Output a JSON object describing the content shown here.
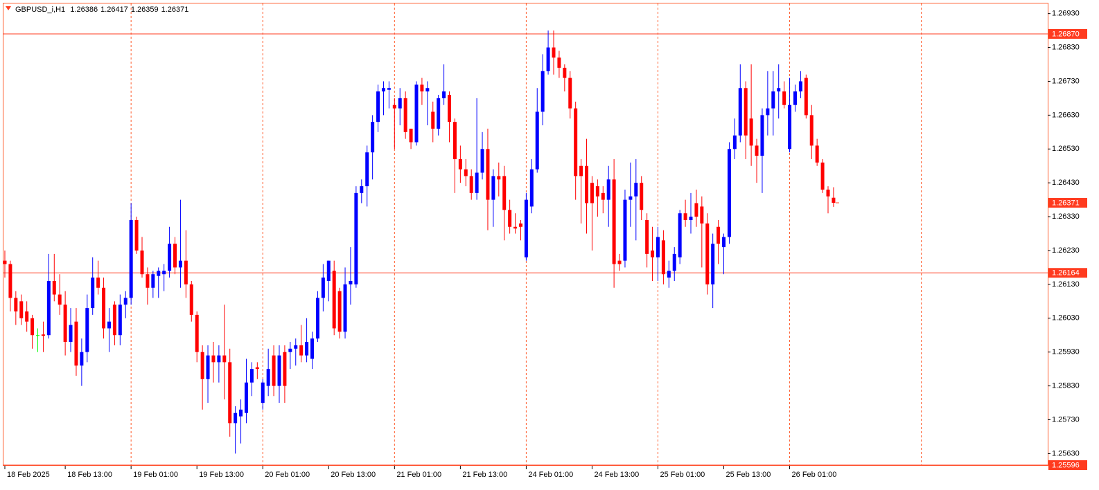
{
  "chart_data": {
    "type": "candlestick",
    "symbol": "GBPUSD_i,H1",
    "categories": [
      "18 Feb 2025",
      null,
      null,
      null,
      null,
      null,
      null,
      null,
      null,
      null,
      null,
      "18 Feb 13:00",
      null,
      null,
      null,
      null,
      null,
      null,
      null,
      null,
      null,
      null,
      null,
      "19 Feb 01:00",
      null,
      null,
      null,
      null,
      null,
      null,
      null,
      null,
      null,
      null,
      null,
      "19 Feb 13:00",
      null,
      null,
      null,
      null,
      null,
      null,
      null,
      null,
      null,
      null,
      null,
      "20 Feb 01:00",
      null,
      null,
      null,
      null,
      null,
      null,
      null,
      null,
      null,
      null,
      null,
      "20 Feb 13:00",
      null,
      null,
      null,
      null,
      null,
      null,
      null,
      null,
      null,
      null,
      null,
      "21 Feb 01:00",
      null,
      null,
      null,
      null,
      null,
      null,
      null,
      null,
      null,
      null,
      null,
      "21 Feb 13:00",
      null,
      null,
      null,
      null,
      null,
      null,
      null,
      null,
      null,
      null,
      null,
      "24 Feb 01:00",
      null,
      null,
      null,
      null,
      null,
      null,
      null,
      null,
      null,
      null,
      null,
      "24 Feb 13:00",
      null,
      null,
      null,
      null,
      null,
      null,
      null,
      null,
      null,
      null,
      null,
      "25 Feb 01:00",
      null,
      null,
      null,
      null,
      null,
      null,
      null,
      null,
      null,
      null,
      null,
      "25 Feb 13:00",
      null,
      null,
      null,
      null,
      null,
      null,
      null,
      null,
      null,
      null,
      null,
      "26 Feb 01:00",
      null,
      null,
      null,
      null,
      null,
      null,
      null,
      null
    ],
    "open": [
      1.262,
      1.2619,
      1.2609,
      1.2608,
      1.2605,
      1.2603,
      1.2598,
      1.25982,
      1.2598,
      1.2614,
      1.261,
      1.2607,
      1.2596,
      1.2602,
      1.2589,
      1.2593,
      1.2606,
      1.2615,
      1.2612,
      1.26,
      1.2607,
      1.2598,
      1.2607,
      1.2609,
      1.2632,
      1.2623,
      1.2616,
      1.2612,
      1.26155,
      1.2616,
      1.2617,
      1.2625,
      1.2618,
      1.262,
      1.2613,
      1.2604,
      1.2593,
      1.2585,
      1.2592,
      1.259,
      1.2592,
      1.259,
      1.2572,
      1.2574,
      1.2575,
      1.2584,
      1.25885,
      1.2578,
      1.2583,
      1.2592,
      1.2583,
      1.2593,
      1.2593,
      1.2594,
      1.2595,
      1.2592,
      1.2591,
      1.2597,
      1.2609,
      1.2614,
      1.2617,
      1.2611,
      1.2599,
      1.2613,
      1.2613,
      1.264,
      1.2642,
      1.2652,
      1.2661,
      1.267,
      1.26705,
      1.2666,
      1.2665,
      1.2668,
      1.2659,
      1.2655,
      1.2672,
      1.267,
      1.2664,
      1.2659,
      1.2668,
      1.2669,
      1.2661,
      1.265,
      1.2647,
      1.2645,
      1.264,
      1.2646,
      1.2653,
      1.2638,
      1.2645,
      1.2645,
      1.2635,
      1.263,
      1.2631,
      1.2621,
      1.2636,
      1.2647,
      1.2664,
      1.2676,
      1.2683,
      1.268,
      1.2677,
      1.2674,
      1.2665,
      1.2648,
      1.2648,
      1.2643,
      1.2642,
      1.264,
      1.2638,
      1.2644,
      1.262,
      1.262,
      1.2638,
      1.2639,
      1.2643,
      1.2632,
      1.2623,
      1.2621,
      1.2626,
      1.2615,
      1.2617,
      1.2621,
      1.2634,
      1.2632,
      1.2637,
      1.2636,
      1.2631,
      1.2613,
      1.263,
      1.2624,
      1.2627,
      1.2653,
      1.2657,
      1.2671,
      1.2662,
      1.2654,
      1.2651,
      1.2663,
      1.2665,
      1.267,
      1.267,
      1.2653,
      1.2666,
      1.267,
      1.2674,
      1.2663,
      1.2654,
      1.2649,
      1.2641,
      1.26386
    ],
    "high": [
      1.2623,
      1.262,
      1.2611,
      1.261,
      1.2608,
      1.2604,
      1.26,
      1.2602,
      1.2622,
      1.2622,
      1.2616,
      1.2611,
      1.2606,
      1.2606,
      1.2597,
      1.261,
      1.2621,
      1.262,
      1.2615,
      1.2606,
      1.2608,
      1.261,
      1.2611,
      1.2637,
      1.2633,
      1.2627,
      1.2618,
      1.2617,
      1.2618,
      1.2619,
      1.263,
      1.2627,
      1.2638,
      1.2629,
      1.2614,
      1.2605,
      1.2595,
      1.2595,
      1.2596,
      1.2595,
      1.2607,
      1.2594,
      1.2577,
      1.2579,
      1.2591,
      1.259,
      1.259,
      1.2585,
      1.2594,
      1.2595,
      1.2595,
      1.2595,
      1.2596,
      1.2597,
      1.2601,
      1.2603,
      1.2599,
      1.2611,
      1.2619,
      1.262,
      1.262,
      1.2612,
      1.2618,
      1.2624,
      1.2642,
      1.2644,
      1.2654,
      1.2663,
      1.2672,
      1.2673,
      1.2673,
      1.2668,
      1.2671,
      1.267,
      1.2659,
      1.2673,
      1.2674,
      1.2673,
      1.2667,
      1.2669,
      1.2678,
      1.267,
      1.2662,
      1.2654,
      1.265,
      1.2647,
      1.2668,
      1.2658,
      1.2659,
      1.2647,
      1.2649,
      1.2648,
      1.2638,
      1.2634,
      1.2632,
      1.264,
      1.265,
      1.2671,
      1.2681,
      1.2688,
      1.2688,
      1.2682,
      1.2678,
      1.2676,
      1.2667,
      1.265,
      1.2656,
      1.2645,
      1.2644,
      1.2642,
      1.2648,
      1.265,
      1.2622,
      1.2641,
      1.2649,
      1.265,
      1.2645,
      1.2634,
      1.263,
      1.263,
      1.2629,
      1.262,
      1.2624,
      1.2635,
      1.2638,
      1.264,
      1.2641,
      1.2639,
      1.2634,
      1.2628,
      1.2632,
      1.2628,
      1.2655,
      1.2662,
      1.2678,
      1.2673,
      1.2678,
      1.2656,
      1.2665,
      1.2676,
      1.2676,
      1.2678,
      1.2673,
      1.2674,
      1.2672,
      1.2676,
      1.2675,
      1.2666,
      1.2656,
      1.265,
      1.2642,
      1.26417
    ],
    "low": [
      1.2615,
      1.2605,
      1.2601,
      1.2601,
      1.2599,
      1.2594,
      1.2593,
      1.2593,
      1.2597,
      1.2608,
      1.2604,
      1.2592,
      1.2593,
      1.2586,
      1.2583,
      1.259,
      1.2604,
      1.261,
      1.2597,
      1.2593,
      1.2595,
      1.2595,
      1.2603,
      1.2607,
      1.2622,
      1.2615,
      1.2607,
      1.2609,
      1.2609,
      1.2611,
      1.2615,
      1.2616,
      1.2612,
      1.2609,
      1.2602,
      1.259,
      1.2576,
      1.2578,
      1.2584,
      1.2584,
      1.2579,
      1.2568,
      1.2563,
      1.2566,
      1.2572,
      1.258,
      1.2585,
      1.2576,
      1.258,
      1.258,
      1.2578,
      1.2578,
      1.2588,
      1.2589,
      1.259,
      1.259,
      1.2588,
      1.2596,
      1.2605,
      1.2608,
      1.2598,
      1.2597,
      1.2597,
      1.2607,
      1.2612,
      1.2637,
      1.2636,
      1.2644,
      1.2658,
      1.2663,
      1.2665,
      1.2653,
      1.266,
      1.2656,
      1.2653,
      1.2654,
      1.2666,
      1.266,
      1.2655,
      1.2657,
      1.2666,
      1.2655,
      1.264,
      1.2643,
      1.2642,
      1.2638,
      1.2638,
      1.2644,
      1.2629,
      1.263,
      1.2639,
      1.2626,
      1.2628,
      1.2628,
      1.2626,
      1.262,
      1.2634,
      1.2646,
      1.266,
      1.2675,
      1.2675,
      1.2674,
      1.267,
      1.2662,
      1.2638,
      1.2631,
      1.2628,
      1.2623,
      1.2633,
      1.2634,
      1.263,
      1.2612,
      1.2617,
      1.2618,
      1.263,
      1.2626,
      1.2632,
      1.2618,
      1.2614,
      1.2614,
      1.2613,
      1.2612,
      1.2614,
      1.2619,
      1.263,
      1.2628,
      1.263,
      1.2618,
      1.261,
      1.2606,
      1.2619,
      1.2616,
      1.2625,
      1.265,
      1.2655,
      1.265,
      1.2648,
      1.2643,
      1.264,
      1.2657,
      1.2657,
      1.2662,
      1.2665,
      1.2652,
      1.2664,
      1.2668,
      1.2662,
      1.265,
      1.2648,
      1.264,
      1.2634,
      1.26359
    ],
    "close": [
      1.2619,
      1.2609,
      1.2605,
      1.2603,
      1.2602,
      1.2598,
      1.2598,
      1.25978,
      1.2614,
      1.261,
      1.2607,
      1.2596,
      1.2601,
      1.2589,
      1.2593,
      1.2606,
      1.2615,
      1.2612,
      1.26,
      1.2602,
      1.2598,
      1.2607,
      1.2609,
      1.2632,
      1.2623,
      1.2616,
      1.2612,
      1.2616,
      1.2617,
      1.2617,
      1.2625,
      1.2618,
      1.262,
      1.2613,
      1.2604,
      1.2593,
      1.2585,
      1.2592,
      1.259,
      1.2592,
      1.259,
      1.2572,
      1.2575,
      1.2576,
      1.2584,
      1.2588,
      1.2588,
      1.2584,
      1.2588,
      1.2583,
      1.2592,
      1.2583,
      1.2594,
      1.2595,
      1.2592,
      1.2596,
      1.2597,
      1.2609,
      1.2615,
      1.262,
      1.26,
      1.2599,
      1.2613,
      1.2614,
      1.264,
      1.2642,
      1.2652,
      1.2661,
      1.267,
      1.2671,
      1.2671,
      1.2665,
      1.2668,
      1.2658,
      1.2655,
      1.2672,
      1.267,
      1.2671,
      1.2659,
      1.2668,
      1.267,
      1.2661,
      1.265,
      1.2647,
      1.2645,
      1.264,
      1.2646,
      1.2653,
      1.2638,
      1.2645,
      1.2644,
      1.2635,
      1.263,
      1.26295,
      1.263,
      1.2638,
      1.2647,
      1.2664,
      1.2676,
      1.2683,
      1.268,
      1.2677,
      1.2674,
      1.2665,
      1.2645,
      1.2645,
      1.2637,
      1.2637,
      1.2639,
      1.2638,
      1.2644,
      1.2619,
      1.2619,
      1.2638,
      1.2639,
      1.2643,
      1.2635,
      1.2622,
      1.2621,
      1.2627,
      1.2616,
      1.2617,
      1.2622,
      1.2634,
      1.2632,
      1.2633,
      1.2633,
      1.2631,
      1.2613,
      1.2625,
      1.2625,
      1.2627,
      1.2653,
      1.2657,
      1.2671,
      1.2657,
      1.2654,
      1.2651,
      1.2663,
      1.2665,
      1.267,
      1.2671,
      1.2666,
      1.2666,
      1.267,
      1.2673,
      1.2663,
      1.2654,
      1.2649,
      1.2641,
      1.2639,
      1.26371
    ],
    "up_color": "#0000ff",
    "down_color": "#ff0000",
    "doji_color": "#00ff00",
    "ylim": [
      1.25594,
      1.2696
    ],
    "yticks": [
      {
        "value": 1.2693,
        "label": "1.26930"
      },
      {
        "value": 1.2683,
        "label": "1.26830"
      },
      {
        "value": 1.2673,
        "label": "1.26730"
      },
      {
        "value": 1.2663,
        "label": "1.26630"
      },
      {
        "value": 1.2653,
        "label": "1.26530"
      },
      {
        "value": 1.2643,
        "label": "1.26430"
      },
      {
        "value": 1.2633,
        "label": "1.26330"
      },
      {
        "value": 1.2623,
        "label": "1.26230"
      },
      {
        "value": 1.2613,
        "label": "1.26130"
      },
      {
        "value": 1.2603,
        "label": "1.26030"
      },
      {
        "value": 1.2593,
        "label": "1.25930"
      },
      {
        "value": 1.2583,
        "label": "1.25830"
      },
      {
        "value": 1.2573,
        "label": "1.25730"
      },
      {
        "value": 1.2563,
        "label": "1.25630"
      }
    ],
    "hlines": [
      {
        "value": 1.2687,
        "label": "1.26870"
      },
      {
        "value": 1.26164,
        "label": "1.26164"
      },
      {
        "value": 1.25596,
        "label": "1.25596"
      }
    ],
    "line_color": "#ff3b1f",
    "separator_color": "#ff5a2a",
    "period_separators": true,
    "grid": false
  }
}
